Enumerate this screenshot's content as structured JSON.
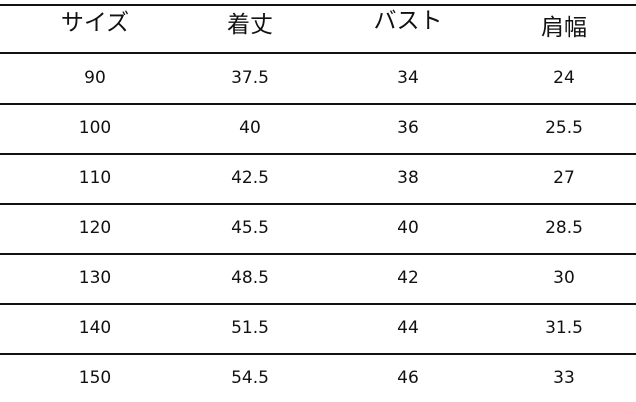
{
  "table": {
    "headers": [
      "サイズ",
      "着丈",
      "バスト",
      "肩幅"
    ],
    "rows": [
      [
        "90",
        "37.5",
        "34",
        "24"
      ],
      [
        "100",
        "40",
        "36",
        "25.5"
      ],
      [
        "110",
        "42.5",
        "38",
        "27"
      ],
      [
        "120",
        "45.5",
        "40",
        "28.5"
      ],
      [
        "130",
        "48.5",
        "42",
        "30"
      ],
      [
        "140",
        "51.5",
        "44",
        "31.5"
      ],
      [
        "150",
        "54.5",
        "46",
        "33"
      ]
    ]
  }
}
